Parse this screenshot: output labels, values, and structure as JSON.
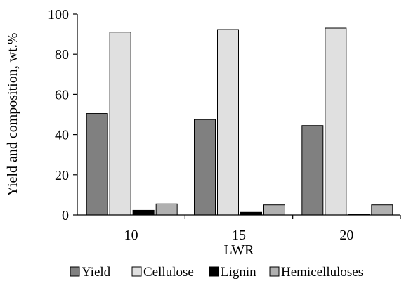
{
  "chart_data": {
    "type": "bar",
    "categories": [
      "10",
      "15",
      "20"
    ],
    "series": [
      {
        "name": "Yield",
        "values": [
          50.5,
          47.5,
          44.5
        ],
        "color": "#808080"
      },
      {
        "name": "Cellulose",
        "values": [
          91,
          92.3,
          93
        ],
        "color": "#e0e0e0"
      },
      {
        "name": "Lignin",
        "values": [
          2.3,
          1.3,
          0.5
        ],
        "color": "#000000"
      },
      {
        "name": "Hemicelluloses",
        "values": [
          5.5,
          5,
          5
        ],
        "color": "#b0b0b0"
      }
    ],
    "title": "",
    "xlabel": "LWR",
    "ylabel": "Yield and composition, wt.%",
    "ylim": [
      0,
      100
    ],
    "yticks": [
      0,
      20,
      40,
      60,
      80,
      100
    ],
    "grid": false,
    "legend_position": "bottom"
  }
}
